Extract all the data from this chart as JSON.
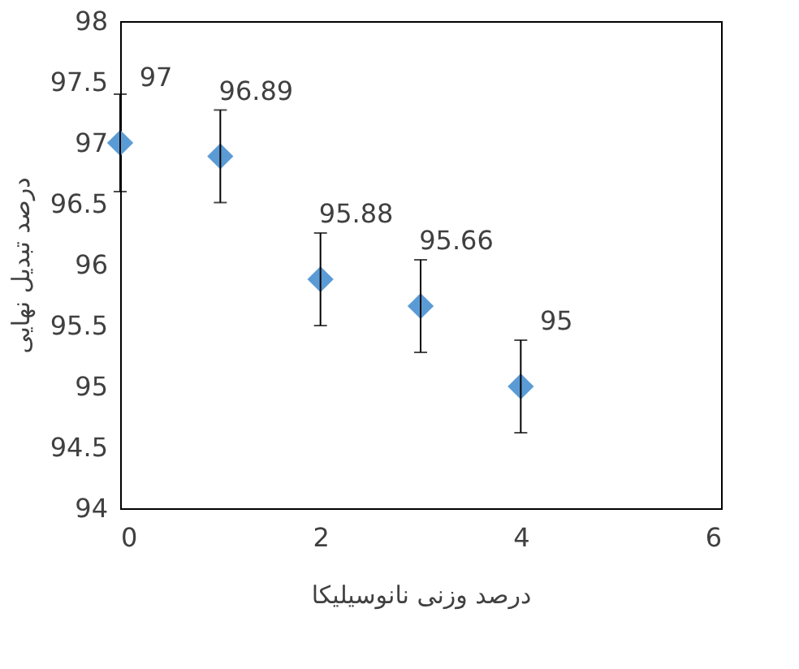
{
  "chart_data": {
    "type": "scatter",
    "xlabel": "درصد وزنی نانوسیلیکا",
    "ylabel": "درصد تبدیل نهایی",
    "x": [
      0,
      1,
      2,
      3,
      4
    ],
    "series": [
      {
        "color": "#5b9bd5",
        "values": [
          97,
          96.89,
          95.88,
          95.66,
          95
        ],
        "errors": [
          0.4,
          0.38,
          0.38,
          0.38,
          0.38
        ]
      }
    ],
    "xlim": [
      0,
      6
    ],
    "xticks": [
      0,
      2,
      4,
      6
    ],
    "ylim": [
      94,
      98
    ],
    "yticks": [
      94,
      94.5,
      95,
      95.5,
      96,
      96.5,
      97,
      97.5,
      98
    ],
    "grid": false,
    "marker": "diamond",
    "data_labels": true
  }
}
